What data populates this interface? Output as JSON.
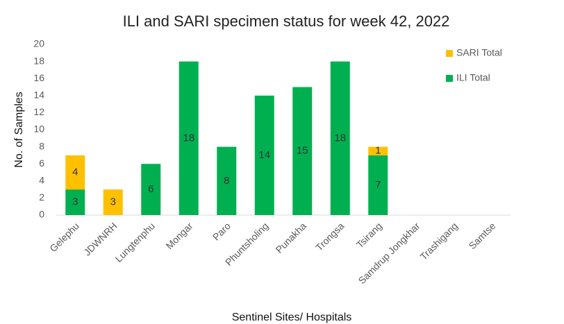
{
  "chart_data": {
    "type": "stacked_bar",
    "title": "ILI and SARI specimen status for week 42, 2022",
    "x_label": "Sentinel Sites/ Hospitals",
    "y_label": "No. of Samples",
    "categories": [
      "Gelephu",
      "JDWNRH",
      "Lungtenphu",
      "Mongar",
      "Paro",
      "Phuntsholing",
      "Punakha",
      "Trongsa",
      "Tsirang",
      "Samdrup Jongkhar",
      "Trashigang",
      "Samtse"
    ],
    "series": [
      {
        "name": "ILI Total",
        "color": "#00b050",
        "values": [
          3,
          null,
          6,
          18,
          8,
          14,
          15,
          18,
          7,
          null,
          null,
          null
        ]
      },
      {
        "name": "SARI Total",
        "color": "#ffc000",
        "values": [
          4,
          3,
          null,
          null,
          null,
          null,
          null,
          null,
          1,
          null,
          null,
          null
        ]
      }
    ],
    "ylim": [
      0,
      20
    ],
    "yticks": [
      0,
      2,
      4,
      6,
      8,
      10,
      12,
      14,
      16,
      18,
      20
    ],
    "grid": false,
    "legend": "top-right"
  }
}
